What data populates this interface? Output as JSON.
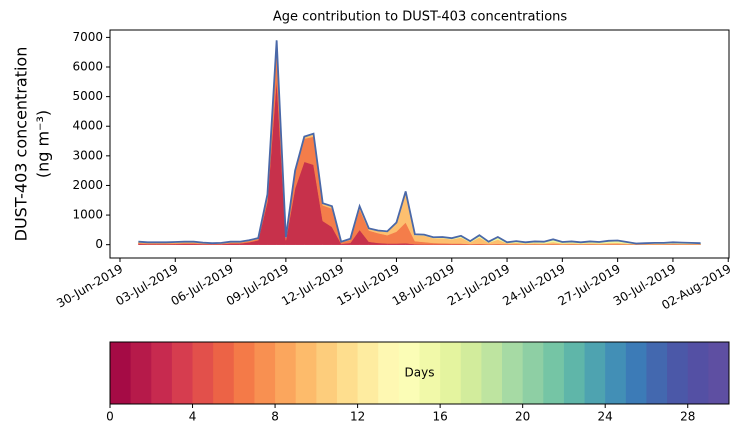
{
  "chart_data": {
    "type": "stacked_area",
    "title": "Age contribution to DUST-403 concentrations",
    "ylabel": [
      "DUST-403 concentration",
      "(ng m⁻³)"
    ],
    "x": [
      "2019-07-01 00:00",
      "2019-07-01 12:00",
      "2019-07-02 00:00",
      "2019-07-02 12:00",
      "2019-07-03 00:00",
      "2019-07-03 12:00",
      "2019-07-04 00:00",
      "2019-07-04 12:00",
      "2019-07-05 00:00",
      "2019-07-05 12:00",
      "2019-07-06 00:00",
      "2019-07-06 12:00",
      "2019-07-07 00:00",
      "2019-07-07 12:00",
      "2019-07-08 00:00",
      "2019-07-08 12:00",
      "2019-07-09 00:00",
      "2019-07-09 12:00",
      "2019-07-10 00:00",
      "2019-07-10 12:00",
      "2019-07-11 00:00",
      "2019-07-11 12:00",
      "2019-07-12 00:00",
      "2019-07-12 12:00",
      "2019-07-13 00:00",
      "2019-07-13 12:00",
      "2019-07-14 00:00",
      "2019-07-14 12:00",
      "2019-07-15 00:00",
      "2019-07-15 12:00",
      "2019-07-16 00:00",
      "2019-07-16 12:00",
      "2019-07-17 00:00",
      "2019-07-17 12:00",
      "2019-07-18 00:00",
      "2019-07-18 12:00",
      "2019-07-19 00:00",
      "2019-07-19 12:00",
      "2019-07-20 00:00",
      "2019-07-20 12:00",
      "2019-07-21 00:00",
      "2019-07-21 12:00",
      "2019-07-22 00:00",
      "2019-07-22 12:00",
      "2019-07-23 00:00",
      "2019-07-23 12:00",
      "2019-07-24 00:00",
      "2019-07-24 12:00",
      "2019-07-25 00:00",
      "2019-07-25 12:00",
      "2019-07-26 00:00",
      "2019-07-26 12:00",
      "2019-07-27 00:00",
      "2019-07-27 12:00",
      "2019-07-28 00:00",
      "2019-07-28 12:00",
      "2019-07-29 00:00",
      "2019-07-29 12:00",
      "2019-07-30 00:00",
      "2019-07-30 12:00",
      "2019-07-31 00:00",
      "2019-07-31 12:00"
    ],
    "series": [
      {
        "color": "#c7314b",
        "values": [
          30,
          20,
          20,
          20,
          25,
          30,
          30,
          20,
          15,
          20,
          40,
          40,
          80,
          150,
          1450,
          5600,
          150,
          1900,
          2800,
          2700,
          800,
          600,
          30,
          60,
          500,
          100,
          60,
          40,
          40,
          50,
          20,
          10,
          10,
          10,
          10,
          10,
          5,
          5,
          5,
          5,
          5,
          5,
          5,
          5,
          5,
          5,
          5,
          5,
          5,
          5,
          5,
          5,
          5,
          5,
          5,
          5,
          5,
          5,
          5,
          5,
          5,
          5
        ]
      },
      {
        "color": "#f47d4a",
        "values": [
          30,
          25,
          25,
          25,
          25,
          30,
          30,
          20,
          15,
          15,
          30,
          30,
          40,
          40,
          200,
          1200,
          70,
          550,
          780,
          950,
          530,
          620,
          50,
          100,
          700,
          380,
          330,
          280,
          400,
          700,
          100,
          80,
          50,
          40,
          30,
          30,
          15,
          30,
          10,
          20,
          10,
          10,
          5,
          10,
          10,
          15,
          5,
          10,
          5,
          10,
          5,
          10,
          10,
          5,
          5,
          5,
          5,
          5,
          10,
          5,
          5,
          5
        ]
      },
      {
        "color": "#fdbf6f",
        "values": [
          20,
          20,
          20,
          20,
          20,
          20,
          20,
          15,
          10,
          15,
          15,
          15,
          15,
          15,
          30,
          70,
          20,
          40,
          50,
          70,
          50,
          60,
          10,
          30,
          80,
          50,
          70,
          110,
          280,
          1000,
          200,
          220,
          160,
          170,
          140,
          200,
          60,
          210,
          50,
          150,
          30,
          50,
          30,
          40,
          30,
          70,
          30,
          35,
          25,
          35,
          30,
          45,
          50,
          30,
          10,
          15,
          20,
          20,
          25,
          25,
          20,
          15
        ]
      },
      {
        "color": "#eef8a5",
        "values": [
          15,
          10,
          10,
          10,
          15,
          15,
          15,
          10,
          5,
          5,
          10,
          10,
          10,
          10,
          15,
          20,
          5,
          5,
          15,
          20,
          15,
          15,
          5,
          5,
          15,
          15,
          15,
          15,
          25,
          40,
          25,
          25,
          25,
          35,
          35,
          50,
          35,
          65,
          30,
          75,
          30,
          45,
          30,
          45,
          45,
          75,
          40,
          45,
          35,
          45,
          40,
          55,
          60,
          40,
          15,
          20,
          25,
          25,
          30,
          25,
          25,
          20
        ]
      },
      {
        "color": "#9cd5a4",
        "values": [
          5,
          5,
          5,
          5,
          5,
          5,
          5,
          5,
          5,
          5,
          5,
          5,
          5,
          5,
          5,
          10,
          5,
          5,
          5,
          10,
          5,
          5,
          5,
          5,
          5,
          5,
          5,
          5,
          5,
          10,
          5,
          5,
          5,
          5,
          5,
          10,
          5,
          10,
          5,
          10,
          5,
          10,
          10,
          10,
          10,
          15,
          10,
          15,
          10,
          15,
          10,
          15,
          15,
          10,
          5,
          5,
          5,
          5,
          10,
          10,
          5,
          5
        ]
      }
    ],
    "line_color": "#4a68a8",
    "xlim": [
      "2019-06-29 11:00",
      "2019-08-02 01:00"
    ],
    "xticks": [
      {
        "value": "2019-06-30 00:00",
        "label": "30-Jun-2019"
      },
      {
        "value": "2019-07-03 00:00",
        "label": "03-Jul-2019"
      },
      {
        "value": "2019-07-06 00:00",
        "label": "06-Jul-2019"
      },
      {
        "value": "2019-07-09 00:00",
        "label": "09-Jul-2019"
      },
      {
        "value": "2019-07-12 00:00",
        "label": "12-Jul-2019"
      },
      {
        "value": "2019-07-15 00:00",
        "label": "15-Jul-2019"
      },
      {
        "value": "2019-07-18 00:00",
        "label": "18-Jul-2019"
      },
      {
        "value": "2019-07-21 00:00",
        "label": "21-Jul-2019"
      },
      {
        "value": "2019-07-24 00:00",
        "label": "24-Jul-2019"
      },
      {
        "value": "2019-07-27 00:00",
        "label": "27-Jul-2019"
      },
      {
        "value": "2019-07-30 00:00",
        "label": "30-Jul-2019"
      },
      {
        "value": "2019-08-02 00:00",
        "label": "02-Aug-2019"
      }
    ],
    "ylim": [
      -450,
      7250
    ],
    "yticks": [
      0,
      1000,
      2000,
      3000,
      4000,
      5000,
      6000,
      7000
    ],
    "colorbar": {
      "label": "Days",
      "lim": [
        0,
        30
      ],
      "ticks": [
        0,
        4,
        8,
        12,
        16,
        20,
        24,
        28
      ],
      "colors": [
        "#a50b45",
        "#b61a4a",
        "#c72a4f",
        "#d63d4f",
        "#e2504b",
        "#ec6346",
        "#f47a48",
        "#f89051",
        "#fba65d",
        "#fdbb6b",
        "#fdcd7c",
        "#fede8e",
        "#feeca0",
        "#fef8b2",
        "#fbfdb6",
        "#f1f9a9",
        "#e4f49f",
        "#d2ec9c",
        "#bee4a0",
        "#a6daa4",
        "#8ecfa4",
        "#75c5a5",
        "#5fb6a9",
        "#4ea3b0",
        "#428fb6",
        "#3c7bb7",
        "#4368af",
        "#4b58a8",
        "#5450a4",
        "#5e4fa2"
      ]
    }
  }
}
